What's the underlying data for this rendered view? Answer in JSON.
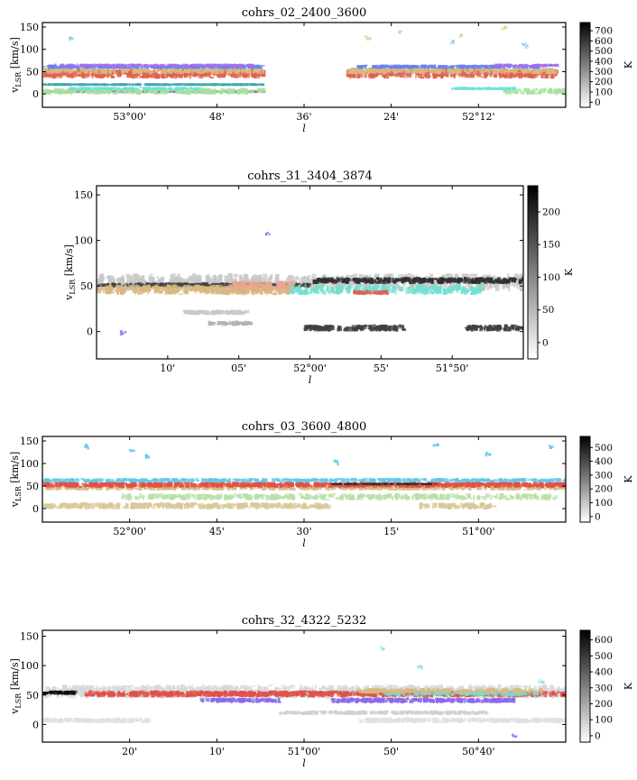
{
  "chart_data": [
    {
      "type": "heatmap",
      "title": "cohrs_02_2400_3600",
      "xlabel": "l",
      "ylabel": "v",
      "ylabel_sub": "LSR",
      "ylabel_unit": " [km/s]",
      "x_ticks": [
        "53°00'",
        "48'",
        "36'",
        "24'",
        "52°12'"
      ],
      "ylim": [
        -30,
        160
      ],
      "y_ticks": [
        0,
        50,
        100,
        150
      ],
      "colorbar": {
        "label": "K",
        "ticks": [
          0,
          100,
          200,
          300,
          400,
          500,
          600,
          700
        ],
        "range": [
          -50,
          780
        ]
      },
      "bands": [
        {
          "color": "#8c8c8c",
          "v": [
            2,
            8
          ],
          "spans": [
            [
              0.0,
              0.42,
              0.6
            ]
          ]
        },
        {
          "color": "#a8e0a0",
          "v": [
            -2,
            14
          ],
          "spans": [
            [
              0.0,
              0.42,
              0.55
            ],
            [
              0.88,
              1.0,
              0.5
            ]
          ]
        },
        {
          "color": "#40a8a8",
          "v": [
            18,
            24
          ],
          "spans": [
            [
              0.0,
              0.42,
              0.85
            ]
          ]
        },
        {
          "color": "#70e0d8",
          "v": [
            8,
            16
          ],
          "spans": [
            [
              0.05,
              0.3,
              0.6
            ],
            [
              0.78,
              0.9,
              0.7
            ]
          ]
        },
        {
          "color": "#e06050",
          "v": [
            34,
            58
          ],
          "spans": [
            [
              0.0,
              0.42,
              0.85
            ],
            [
              0.58,
              0.98,
              0.85
            ]
          ]
        },
        {
          "color": "#d8b880",
          "v": [
            44,
            60
          ],
          "spans": [
            [
              0.0,
              0.42,
              0.55
            ],
            [
              0.58,
              0.98,
              0.6
            ]
          ]
        },
        {
          "color": "#6a80f0",
          "v": [
            56,
            66
          ],
          "spans": [
            [
              0.0,
              0.42,
              0.7
            ],
            [
              0.6,
              0.95,
              0.6
            ]
          ]
        },
        {
          "color": "#a070f0",
          "v": [
            60,
            68
          ],
          "spans": [
            [
              0.02,
              0.4,
              0.5
            ],
            [
              0.86,
              0.98,
              0.6
            ]
          ]
        }
      ],
      "speckles": [
        {
          "color": "#d8d8a0",
          "pts": [
            [
              0.62,
              128
            ],
            [
              0.68,
              140
            ],
            [
              0.8,
              132
            ],
            [
              0.88,
              150
            ]
          ]
        },
        {
          "color": "#90d0e8",
          "pts": [
            [
              0.05,
              126
            ],
            [
              0.78,
              118
            ],
            [
              0.92,
              112
            ]
          ]
        }
      ]
    },
    {
      "type": "heatmap",
      "title": "cohrs_31_3404_3874",
      "xlabel": "l",
      "ylabel": "v",
      "ylabel_sub": "LSR",
      "ylabel_unit": " [km/s]",
      "x_ticks": [
        "10'",
        "05'",
        "52°00'",
        "55'",
        "51°50'"
      ],
      "ylim": [
        -30,
        160
      ],
      "y_ticks": [
        0,
        50,
        100,
        150
      ],
      "colorbar": {
        "label": "K",
        "ticks": [
          0,
          50,
          100,
          150,
          200
        ],
        "range": [
          -25,
          240
        ]
      },
      "bands": [
        {
          "color": "#c8c8c8",
          "v": [
            44,
            64
          ],
          "spans": [
            [
              0.0,
              1.0,
              0.7
            ]
          ]
        },
        {
          "color": "#303030",
          "v": [
            52,
            60
          ],
          "spans": [
            [
              0.5,
              1.0,
              0.75
            ]
          ]
        },
        {
          "color": "#404040",
          "v": [
            48,
            54
          ],
          "spans": [
            [
              0.0,
              0.5,
              0.55
            ]
          ]
        },
        {
          "color": "#d8b880",
          "v": [
            40,
            52
          ],
          "spans": [
            [
              0.0,
              0.45,
              0.75
            ]
          ]
        },
        {
          "color": "#e8a890",
          "v": [
            44,
            56
          ],
          "spans": [
            [
              0.3,
              0.46,
              0.7
            ]
          ]
        },
        {
          "color": "#70e0d0",
          "v": [
            40,
            52
          ],
          "spans": [
            [
              0.45,
              0.9,
              0.6
            ]
          ]
        },
        {
          "color": "#e06050",
          "v": [
            40,
            46
          ],
          "spans": [
            [
              0.6,
              0.68,
              0.8
            ]
          ]
        },
        {
          "color": "#c8c8c8",
          "v": [
            18,
            24
          ],
          "spans": [
            [
              0.2,
              0.35,
              0.8
            ]
          ]
        },
        {
          "color": "#b0b0b0",
          "v": [
            6,
            12
          ],
          "spans": [
            [
              0.26,
              0.36,
              0.8
            ]
          ]
        },
        {
          "color": "#404040",
          "v": [
            0,
            8
          ],
          "spans": [
            [
              0.48,
              0.72,
              0.75
            ],
            [
              0.86,
              1.0,
              0.8
            ]
          ]
        }
      ],
      "speckles": [
        {
          "color": "#a070f0",
          "pts": [
            [
              0.4,
              108
            ],
            [
              0.06,
              0
            ]
          ]
        }
      ]
    },
    {
      "type": "heatmap",
      "title": "cohrs_03_3600_4800",
      "xlabel": "l",
      "ylabel": "v",
      "ylabel_sub": "LSR",
      "ylabel_unit": " [km/s]",
      "x_ticks": [
        "52°00'",
        "45'",
        "30'",
        "15'",
        "51°00'"
      ],
      "ylim": [
        -30,
        160
      ],
      "y_ticks": [
        0,
        50,
        100,
        150
      ],
      "colorbar": {
        "label": "K",
        "ticks": [
          0,
          100,
          200,
          300,
          400,
          500
        ],
        "range": [
          -40,
          580
        ]
      },
      "bands": [
        {
          "color": "#d8c898",
          "v": [
            -2,
            14
          ],
          "spans": [
            [
              0.0,
              0.55,
              0.6
            ],
            [
              0.72,
              0.86,
              0.55
            ]
          ]
        },
        {
          "color": "#b8e0a8",
          "v": [
            18,
            34
          ],
          "spans": [
            [
              0.15,
              0.98,
              0.45
            ]
          ]
        },
        {
          "color": "#d8b880",
          "v": [
            40,
            52
          ],
          "spans": [
            [
              0.0,
              1.0,
              0.55
            ]
          ]
        },
        {
          "color": "#e05048",
          "v": [
            46,
            60
          ],
          "spans": [
            [
              0.0,
              1.0,
              0.85
            ]
          ]
        },
        {
          "color": "#60c8e8",
          "v": [
            58,
            68
          ],
          "spans": [
            [
              0.0,
              1.0,
              0.55
            ]
          ]
        },
        {
          "color": "#303030",
          "v": [
            52,
            57
          ],
          "spans": [
            [
              0.55,
              0.75,
              0.55
            ]
          ]
        }
      ],
      "speckles": [
        {
          "color": "#60c8e8",
          "pts": [
            [
              0.08,
              140
            ],
            [
              0.17,
              132
            ],
            [
              0.2,
              118
            ],
            [
              0.56,
              106
            ],
            [
              0.75,
              146
            ],
            [
              0.85,
              124
            ],
            [
              0.97,
              138
            ]
          ]
        }
      ]
    },
    {
      "type": "heatmap",
      "title": "cohrs_32_4322_5232",
      "xlabel": "l",
      "ylabel": "v",
      "ylabel_sub": "LSR",
      "ylabel_unit": " [km/s]",
      "x_ticks": [
        "20'",
        "10'",
        "51°00'",
        "50'",
        "50°40'"
      ],
      "ylim": [
        -30,
        160
      ],
      "y_ticks": [
        0,
        50,
        100,
        150
      ],
      "colorbar": {
        "label": "K",
        "ticks": [
          0,
          100,
          200,
          300,
          400,
          500,
          600
        ],
        "range": [
          -40,
          660
        ]
      },
      "bands": [
        {
          "color": "#d8d8d8",
          "v": [
            44,
            68
          ],
          "spans": [
            [
              0.0,
              1.0,
              0.85
            ]
          ]
        },
        {
          "color": "#e0e0e0",
          "v": [
            2,
            12
          ],
          "spans": [
            [
              0.0,
              0.2,
              0.7
            ],
            [
              0.6,
              1.0,
              0.7
            ]
          ]
        },
        {
          "color": "#d0d0d0",
          "v": [
            16,
            24
          ],
          "spans": [
            [
              0.45,
              0.85,
              0.6
            ]
          ]
        },
        {
          "color": "#101010",
          "v": [
            50,
            58
          ],
          "spans": [
            [
              0.0,
              0.06,
              0.9
            ]
          ]
        },
        {
          "color": "#e05048",
          "v": [
            46,
            58
          ],
          "spans": [
            [
              0.08,
              0.62,
              0.85
            ],
            [
              0.62,
              1.0,
              0.6
            ]
          ]
        },
        {
          "color": "#8a6ae8",
          "v": [
            36,
            46
          ],
          "spans": [
            [
              0.3,
              0.45,
              0.7
            ],
            [
              0.55,
              0.9,
              0.8
            ]
          ]
        },
        {
          "color": "#70e0d0",
          "v": [
            48,
            58
          ],
          "spans": [
            [
              0.65,
              0.95,
              0.5
            ]
          ]
        },
        {
          "color": "#d8b880",
          "v": [
            52,
            62
          ],
          "spans": [
            [
              0.6,
              0.95,
              0.55
            ]
          ]
        }
      ],
      "speckles": [
        {
          "color": "#90e0e8",
          "pts": [
            [
              0.65,
              130
            ],
            [
              0.72,
              100
            ],
            [
              0.95,
              76
            ]
          ]
        },
        {
          "color": "#a070f0",
          "pts": [
            [
              0.9,
              -18
            ]
          ]
        }
      ]
    }
  ]
}
